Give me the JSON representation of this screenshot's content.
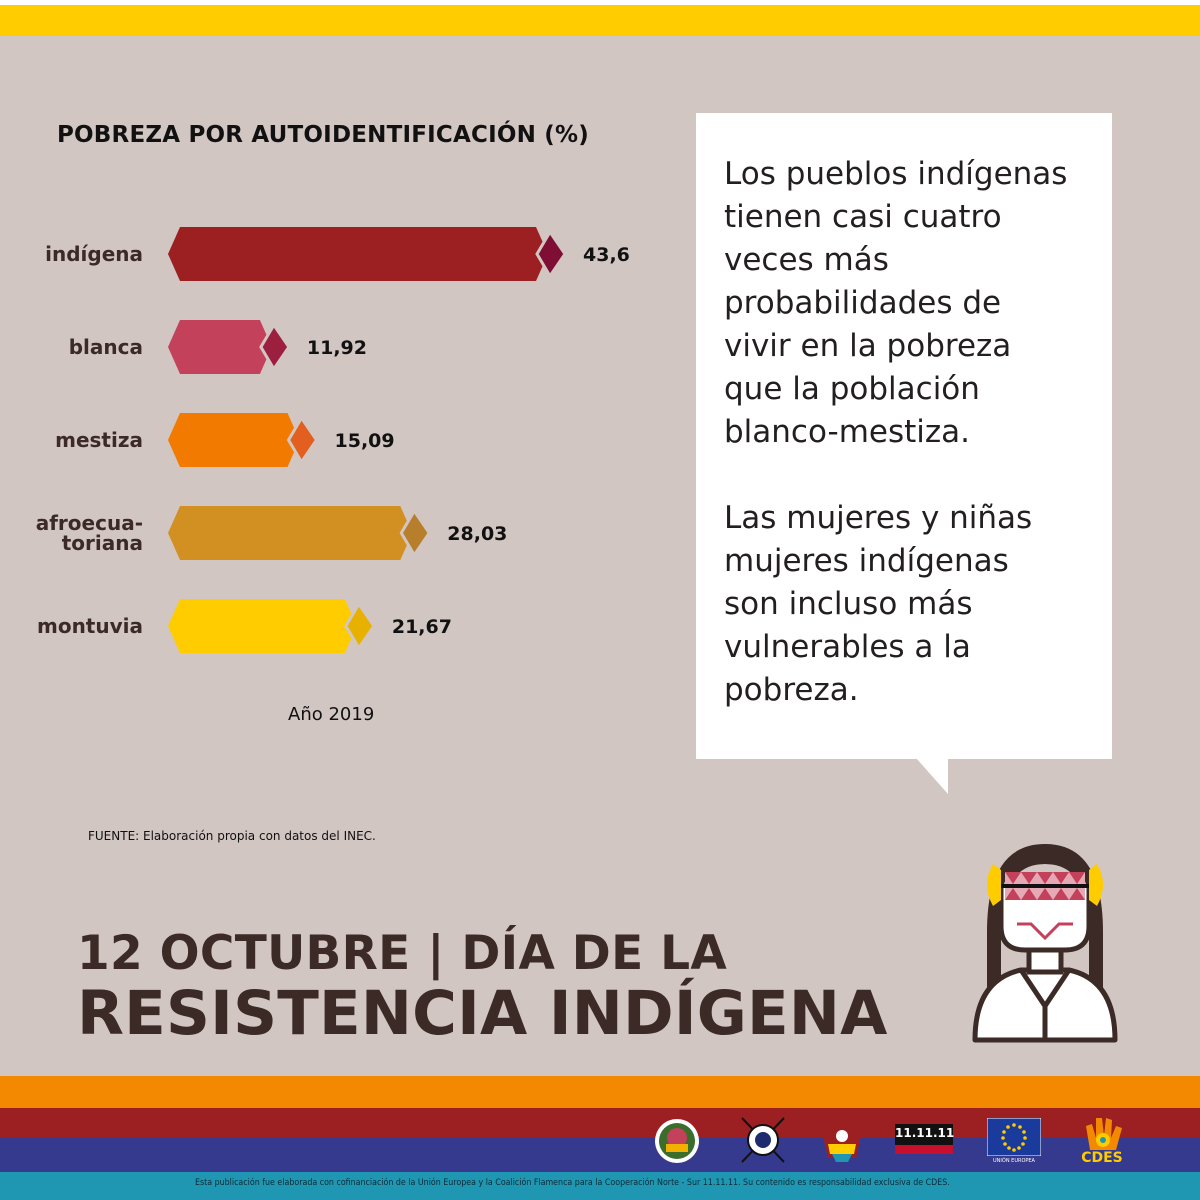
{
  "chart_data": {
    "type": "bar",
    "orientation": "horizontal",
    "title": "POBREZA POR AUTOIDENTIFICACIÓN (%)",
    "categories": [
      "indígena",
      "blanca",
      "mestiza",
      "afroecua-\ntoriana",
      "montuvia"
    ],
    "values": [
      43.6,
      11.92,
      15.09,
      28.03,
      21.67
    ],
    "value_labels": [
      "43,6",
      "11,92",
      "15,09",
      "28,03",
      "21,67"
    ],
    "bar_colors": [
      "#9c1f22",
      "#c4415c",
      "#f27a00",
      "#d19021",
      "#ffcc00"
    ],
    "tip_colors": [
      "#7e0e33",
      "#9c1f3f",
      "#e35f1f",
      "#b77f2b",
      "#e8b100"
    ],
    "note": "Año 2019",
    "xlim": [
      0,
      43.6
    ],
    "grid": false,
    "legend": "none"
  },
  "source": "FUENTE: Elaboración propia con datos del INEC.",
  "bubble": {
    "paragraphs": [
      [
        "Los pueblos indígenas",
        "tienen casi cuatro",
        "veces más",
        "probabilidades de",
        "vivir en la pobreza",
        "que la población",
        "blanco-mestiza."
      ],
      [
        "Las mujeres y niñas",
        "mujeres indígenas",
        "son incluso más",
        "vulnerables a la",
        "pobreza."
      ]
    ]
  },
  "heading": {
    "line1": "12 OCTUBRE | DÍA DE LA",
    "line2": "RESISTENCIA INDÍGENA"
  },
  "footer": {
    "note": "Esta publicación fue elaborada con cofinanciación de la Unión Europea y la Coalición Flamenca para la Cooperación Norte - Sur 11.11.11. Su contenido es responsabilidad exclusiva de CDES.",
    "logos": {
      "one": "11.11.11",
      "eu": "UNIÓN EUROPEA",
      "cdes": "CDES"
    }
  },
  "colors": {
    "background": "#d2c6c3",
    "yellow": "#ffcc00",
    "orange": "#f28900",
    "red": "#9c1f22",
    "blue": "#353a8e",
    "teal": "#1f97b3",
    "text_dark": "#3b2a26"
  }
}
